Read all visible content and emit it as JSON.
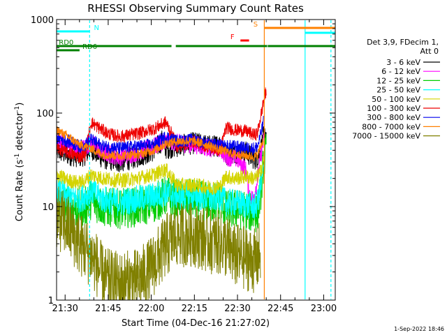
{
  "chart_data": {
    "type": "line",
    "title": "RHESSI Observing Summary Count Rates",
    "xlabel": "Start Time (04-Dec-16 21:27:02)",
    "ylabel_main": "Count Rate (s",
    "ylabel_sup1": "-1",
    "ylabel_mid": " detector",
    "ylabel_sup2": "-1",
    "ylabel_end": ")",
    "yscale": "log",
    "ylim": [
      1,
      1000
    ],
    "xlim_minutes": [
      0,
      97
    ],
    "x_ticks": [
      {
        "label": "21:30",
        "min": 2.97
      },
      {
        "label": "21:45",
        "min": 17.97
      },
      {
        "label": "22:00",
        "min": 32.97
      },
      {
        "label": "22:15",
        "min": 47.97
      },
      {
        "label": "22:30",
        "min": 62.97
      },
      {
        "label": "22:45",
        "min": 77.97
      },
      {
        "label": "23:00",
        "min": 92.97
      }
    ],
    "y_ticks": [
      {
        "label": "1",
        "value": 1
      },
      {
        "label": "10",
        "value": 10
      },
      {
        "label": "100",
        "value": 100
      },
      {
        "label": "1000",
        "value": 1000
      }
    ],
    "legend_header": [
      "Det 3,9, FDecim 1,",
      "Att 0"
    ],
    "legend_placement": "right",
    "series": [
      {
        "name": "3 - 6 keV",
        "color": "#000000",
        "points": [
          [
            0,
            40
          ],
          [
            4,
            36
          ],
          [
            8,
            34
          ],
          [
            10,
            36
          ],
          [
            12,
            42
          ],
          [
            16,
            33
          ],
          [
            22,
            30
          ],
          [
            28,
            34
          ],
          [
            34,
            40
          ],
          [
            37,
            52
          ],
          [
            38,
            42
          ],
          [
            42,
            44
          ],
          [
            48,
            48
          ],
          [
            54,
            44
          ],
          [
            57,
            46
          ],
          [
            59,
            36
          ],
          [
            62,
            38
          ],
          [
            66,
            38
          ],
          [
            69,
            32
          ],
          [
            70,
            34
          ],
          [
            71,
            40
          ],
          [
            72,
            55
          ],
          [
            73,
            60
          ]
        ],
        "noise": 0.12
      },
      {
        "name": "6 - 12 keV",
        "color": "#ff00ff",
        "points": [
          [
            0,
            50
          ],
          [
            4,
            44
          ],
          [
            8,
            40
          ],
          [
            10,
            44
          ],
          [
            12,
            48
          ],
          [
            16,
            38
          ],
          [
            22,
            34
          ],
          [
            28,
            38
          ],
          [
            34,
            44
          ],
          [
            38,
            52
          ],
          [
            42,
            48
          ],
          [
            48,
            46
          ],
          [
            54,
            42
          ],
          [
            57,
            42
          ],
          [
            59,
            34
          ],
          [
            62,
            33
          ],
          [
            64,
            30
          ],
          [
            66,
            24
          ],
          [
            67,
            14
          ],
          [
            68,
            12
          ],
          [
            69,
            14
          ],
          [
            70,
            20
          ],
          [
            71,
            34
          ],
          [
            72,
            50
          ]
        ],
        "noise": 0.1
      },
      {
        "name": "12 - 25 keV",
        "color": "#00cc00",
        "points": [
          [
            0,
            11
          ],
          [
            4,
            10
          ],
          [
            8,
            9.5
          ],
          [
            10,
            10
          ],
          [
            12,
            12
          ],
          [
            16,
            10
          ],
          [
            22,
            9.5
          ],
          [
            28,
            10
          ],
          [
            34,
            11
          ],
          [
            38,
            13
          ],
          [
            42,
            12
          ],
          [
            48,
            12
          ],
          [
            54,
            11
          ],
          [
            57,
            12
          ],
          [
            59,
            9
          ],
          [
            62,
            9.5
          ],
          [
            66,
            9
          ],
          [
            69,
            8.5
          ],
          [
            70,
            9
          ],
          [
            71,
            14
          ],
          [
            72,
            28
          ],
          [
            73,
            40
          ]
        ],
        "noise": 0.22
      },
      {
        "name": "25 - 50 keV",
        "color": "#00ffff",
        "points": [
          [
            0,
            15
          ],
          [
            4,
            13
          ],
          [
            8,
            12
          ],
          [
            10,
            13
          ],
          [
            12,
            15
          ],
          [
            16,
            12
          ],
          [
            22,
            11
          ],
          [
            28,
            12
          ],
          [
            34,
            13
          ],
          [
            38,
            14
          ],
          [
            42,
            13
          ],
          [
            48,
            13
          ],
          [
            54,
            12
          ],
          [
            57,
            13
          ],
          [
            59,
            11
          ],
          [
            62,
            11
          ],
          [
            66,
            10.5
          ],
          [
            69,
            10
          ],
          [
            70,
            11
          ],
          [
            71,
            16
          ],
          [
            72,
            25
          ]
        ],
        "noise": 0.15
      },
      {
        "name": "50 - 100 keV",
        "color": "#ffff00",
        "stroke": "#d4d400",
        "points": [
          [
            0,
            22
          ],
          [
            4,
            19
          ],
          [
            8,
            18
          ],
          [
            10,
            19
          ],
          [
            12,
            22
          ],
          [
            16,
            20
          ],
          [
            22,
            19
          ],
          [
            28,
            20
          ],
          [
            34,
            22
          ],
          [
            38,
            25
          ],
          [
            42,
            17
          ],
          [
            48,
            17
          ],
          [
            54,
            16
          ],
          [
            57,
            16.5
          ],
          [
            59,
            21
          ],
          [
            62,
            20
          ],
          [
            66,
            21
          ],
          [
            69,
            20
          ],
          [
            70,
            21
          ],
          [
            71,
            24
          ],
          [
            72,
            30
          ]
        ],
        "noise": 0.08
      },
      {
        "name": "100 - 300 keV",
        "color": "#ff0000",
        "stroke": "#ee0000",
        "points": [
          [
            0,
            42
          ],
          [
            4,
            38
          ],
          [
            8,
            34
          ],
          [
            10,
            36
          ],
          [
            12,
            80
          ],
          [
            14,
            72
          ],
          [
            18,
            60
          ],
          [
            22,
            56
          ],
          [
            28,
            60
          ],
          [
            34,
            68
          ],
          [
            38,
            80
          ],
          [
            39,
            70
          ],
          [
            42,
            44
          ],
          [
            48,
            50
          ],
          [
            54,
            42
          ],
          [
            57,
            40
          ],
          [
            59,
            70
          ],
          [
            62,
            66
          ],
          [
            66,
            64
          ],
          [
            69,
            58
          ],
          [
            70,
            62
          ],
          [
            71,
            90
          ],
          [
            72,
            130
          ],
          [
            73,
            175
          ]
        ],
        "noise": 0.07
      },
      {
        "name": "300 - 800 keV",
        "color": "#0000ff",
        "stroke": "#0000ee",
        "points": [
          [
            0,
            55
          ],
          [
            4,
            50
          ],
          [
            8,
            44
          ],
          [
            10,
            46
          ],
          [
            12,
            52
          ],
          [
            16,
            44
          ],
          [
            22,
            42
          ],
          [
            28,
            44
          ],
          [
            34,
            46
          ],
          [
            38,
            56
          ],
          [
            42,
            50
          ],
          [
            48,
            52
          ],
          [
            54,
            46
          ],
          [
            57,
            45
          ],
          [
            59,
            44
          ],
          [
            62,
            44
          ],
          [
            66,
            42
          ],
          [
            69,
            42
          ],
          [
            70,
            44
          ],
          [
            71,
            58
          ],
          [
            72,
            80
          ]
        ],
        "noise": 0.07
      },
      {
        "name": "800 - 7000 keV",
        "color": "#ff8000",
        "stroke": "#ff8000",
        "points": [
          [
            0,
            66
          ],
          [
            4,
            56
          ],
          [
            8,
            46
          ],
          [
            10,
            44
          ],
          [
            12,
            42
          ],
          [
            16,
            36
          ],
          [
            22,
            35
          ],
          [
            28,
            36
          ],
          [
            34,
            40
          ],
          [
            38,
            47
          ],
          [
            42,
            50
          ],
          [
            48,
            50
          ],
          [
            54,
            44
          ],
          [
            57,
            40
          ],
          [
            59,
            39
          ],
          [
            62,
            36
          ],
          [
            66,
            35
          ],
          [
            69,
            34
          ],
          [
            70,
            36
          ],
          [
            71,
            44
          ],
          [
            72,
            52
          ]
        ],
        "noise": 0.05
      },
      {
        "name": "7000 - 15000 keV",
        "color": "#808000",
        "points": [
          [
            0,
            7.5
          ],
          [
            2,
            7
          ],
          [
            4,
            6
          ],
          [
            6,
            5
          ],
          [
            8,
            4
          ],
          [
            10,
            3.5
          ],
          [
            12,
            3
          ],
          [
            14,
            2.4
          ],
          [
            16,
            1.8
          ],
          [
            18,
            1.6
          ],
          [
            22,
            1.5
          ],
          [
            28,
            1.6
          ],
          [
            32,
            2
          ],
          [
            36,
            3
          ],
          [
            38,
            3.8
          ],
          [
            42,
            5
          ],
          [
            48,
            5
          ],
          [
            54,
            4.2
          ],
          [
            58,
            4
          ],
          [
            60,
            3.5
          ],
          [
            62,
            3
          ],
          [
            66,
            2.8
          ],
          [
            69,
            2.6
          ],
          [
            70,
            2.8
          ],
          [
            71,
            3.4
          ]
        ],
        "noise": 0.35
      }
    ],
    "flag_bars": [
      {
        "label": "N",
        "color": "#00ffff",
        "y": 45,
        "segments": [
          [
            0,
            11.5
          ]
        ],
        "label_at": 13,
        "label_color": "#00ffff"
      },
      {
        "label": "RD0",
        "color": "#008000",
        "y": 66,
        "segments": [
          [
            0,
            40
          ],
          [
            41.5,
            73.3
          ],
          [
            73.5,
            97
          ]
        ],
        "label_at": 0.8,
        "label_color": "#008000"
      },
      {
        "label": "RD6",
        "color": "#008000",
        "y": 72,
        "segments": [
          [
            0,
            8
          ]
        ],
        "label_at": 9,
        "label_color": "#008000"
      },
      {
        "label": "F",
        "color": "#ff0000",
        "y": 58,
        "segments": [
          [
            64,
            67
          ]
        ],
        "label_at": 60.5,
        "label_color": "#ff0000"
      },
      {
        "label": "S",
        "color": "#ff8000",
        "y": 40,
        "segments": [
          [
            72.3,
            97
          ]
        ],
        "label_at": 68.5,
        "label_color": "#ff8000"
      },
      {
        "label": "",
        "color": "#00ffff",
        "y": 47,
        "segments": [
          [
            86.5,
            97
          ]
        ],
        "label_at": 0,
        "label_color": "#00ffff"
      }
    ],
    "vertical_lines": [
      {
        "min": 11.5,
        "color": "#00ffff",
        "dashed": true
      },
      {
        "min": 72.3,
        "color": "#ff8000",
        "dashed": false
      },
      {
        "min": 86.5,
        "color": "#00ffff",
        "dashed": false
      },
      {
        "min": 95.5,
        "color": "#00ffff",
        "dashed": true
      }
    ],
    "footer_date": "1-Sep-2022 18:46"
  }
}
